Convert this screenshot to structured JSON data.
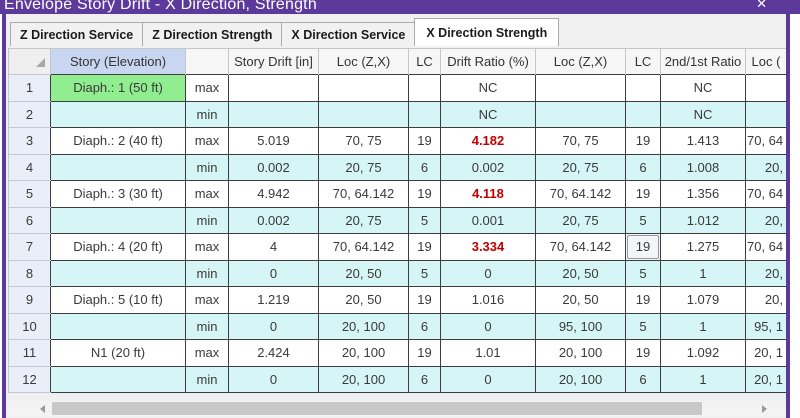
{
  "window": {
    "title": "Envelope Story Drift - X Direction, Strength",
    "close_glyph": "✕"
  },
  "tabs": [
    {
      "label": "Z Direction Service",
      "active": false
    },
    {
      "label": "Z Direction Strength",
      "active": false
    },
    {
      "label": "X Direction Service",
      "active": false
    },
    {
      "label": "X Direction Strength",
      "active": true
    }
  ],
  "grid": {
    "columns": [
      {
        "key": "num",
        "label": "",
        "width": 42
      },
      {
        "key": "story",
        "label": "Story (Elevation)",
        "width": 135,
        "hl": true
      },
      {
        "key": "kind",
        "label": "",
        "width": 43
      },
      {
        "key": "drift",
        "label": "Story Drift [in]",
        "width": 90
      },
      {
        "key": "loc1",
        "label": "Loc (Z,X)",
        "width": 90
      },
      {
        "key": "lc1",
        "label": "LC",
        "width": 32
      },
      {
        "key": "ratio",
        "label": "Drift Ratio (%)",
        "width": 95
      },
      {
        "key": "loc2",
        "label": "Loc (Z,X)",
        "width": 90
      },
      {
        "key": "lc2",
        "label": "LC",
        "width": 35
      },
      {
        "key": "ratio2",
        "label": "2nd/1st Ratio",
        "width": 85
      },
      {
        "key": "loc3",
        "label": "Loc (",
        "width": 41
      }
    ],
    "rows": [
      {
        "num": "1",
        "story": "Diaph.: 1 (50 ft)",
        "kind": "max",
        "drift": "",
        "loc1": "",
        "lc1": "",
        "ratio": "NC",
        "loc2": "",
        "lc2": "",
        "ratio2": "NC",
        "loc3": "",
        "stripe": "white",
        "story_green": true,
        "ratio_alert": false,
        "focused_cell": ""
      },
      {
        "num": "2",
        "story": "",
        "kind": "min",
        "drift": "",
        "loc1": "",
        "lc1": "",
        "ratio": "NC",
        "loc2": "",
        "lc2": "",
        "ratio2": "NC",
        "loc3": "",
        "stripe": "cyan",
        "story_green": false,
        "ratio_alert": false,
        "focused_cell": ""
      },
      {
        "num": "3",
        "story": "Diaph.: 2 (40 ft)",
        "kind": "max",
        "drift": "5.019",
        "loc1": "70, 75",
        "lc1": "19",
        "ratio": "4.182",
        "loc2": "70, 75",
        "lc2": "19",
        "ratio2": "1.413",
        "loc3": "70, 64",
        "stripe": "white",
        "story_green": false,
        "ratio_alert": true,
        "focused_cell": ""
      },
      {
        "num": "4",
        "story": "",
        "kind": "min",
        "drift": "0.002",
        "loc1": "20, 75",
        "lc1": "6",
        "ratio": "0.002",
        "loc2": "20, 75",
        "lc2": "6",
        "ratio2": "1.008",
        "loc3": "20,",
        "stripe": "cyan",
        "story_green": false,
        "ratio_alert": false,
        "focused_cell": ""
      },
      {
        "num": "5",
        "story": "Diaph.: 3 (30 ft)",
        "kind": "max",
        "drift": "4.942",
        "loc1": "70, 64.142",
        "lc1": "19",
        "ratio": "4.118",
        "loc2": "70, 64.142",
        "lc2": "19",
        "ratio2": "1.356",
        "loc3": "70, 64",
        "stripe": "white",
        "story_green": false,
        "ratio_alert": true,
        "focused_cell": ""
      },
      {
        "num": "6",
        "story": "",
        "kind": "min",
        "drift": "0.002",
        "loc1": "20, 75",
        "lc1": "5",
        "ratio": "0.001",
        "loc2": "20, 75",
        "lc2": "5",
        "ratio2": "1.012",
        "loc3": "20,",
        "stripe": "cyan",
        "story_green": false,
        "ratio_alert": false,
        "focused_cell": ""
      },
      {
        "num": "7",
        "story": "Diaph.: 4 (20 ft)",
        "kind": "max",
        "drift": "4",
        "loc1": "70, 64.142",
        "lc1": "19",
        "ratio": "3.334",
        "loc2": "70, 64.142",
        "lc2": "19",
        "ratio2": "1.275",
        "loc3": "70, 64",
        "stripe": "white",
        "story_green": false,
        "ratio_alert": true,
        "focused_cell": "lc2"
      },
      {
        "num": "8",
        "story": "",
        "kind": "min",
        "drift": "0",
        "loc1": "20, 50",
        "lc1": "5",
        "ratio": "0",
        "loc2": "20, 50",
        "lc2": "5",
        "ratio2": "1",
        "loc3": "20,",
        "stripe": "cyan",
        "story_green": false,
        "ratio_alert": false,
        "focused_cell": ""
      },
      {
        "num": "9",
        "story": "Diaph.: 5 (10 ft)",
        "kind": "max",
        "drift": "1.219",
        "loc1": "20, 50",
        "lc1": "19",
        "ratio": "1.016",
        "loc2": "20, 50",
        "lc2": "19",
        "ratio2": "1.079",
        "loc3": "20,",
        "stripe": "white",
        "story_green": false,
        "ratio_alert": false,
        "focused_cell": ""
      },
      {
        "num": "10",
        "story": "",
        "kind": "min",
        "drift": "0",
        "loc1": "20, 100",
        "lc1": "6",
        "ratio": "0",
        "loc2": "95, 100",
        "lc2": "5",
        "ratio2": "1",
        "loc3": "95, 1",
        "stripe": "cyan",
        "story_green": false,
        "ratio_alert": false,
        "focused_cell": ""
      },
      {
        "num": "11",
        "story": "N1 (20 ft)",
        "kind": "max",
        "drift": "2.424",
        "loc1": "20, 100",
        "lc1": "19",
        "ratio": "1.01",
        "loc2": "20, 100",
        "lc2": "19",
        "ratio2": "1.092",
        "loc3": "20, 1",
        "stripe": "white",
        "story_green": false,
        "ratio_alert": false,
        "focused_cell": ""
      },
      {
        "num": "12",
        "story": "",
        "kind": "min",
        "drift": "0",
        "loc1": "20, 100",
        "lc1": "6",
        "ratio": "0",
        "loc2": "20, 100",
        "lc2": "6",
        "ratio2": "1",
        "loc3": "20, 1",
        "stripe": "cyan",
        "story_green": false,
        "ratio_alert": false,
        "focused_cell": ""
      }
    ]
  },
  "scrollbar": {
    "orientation": "horizontal"
  },
  "colors": {
    "purple": "#5c3a9b",
    "cyan": "#d5f5f6",
    "green": "#90ee90",
    "header_highlight": "#c9d6f2",
    "red": "#c00000"
  }
}
